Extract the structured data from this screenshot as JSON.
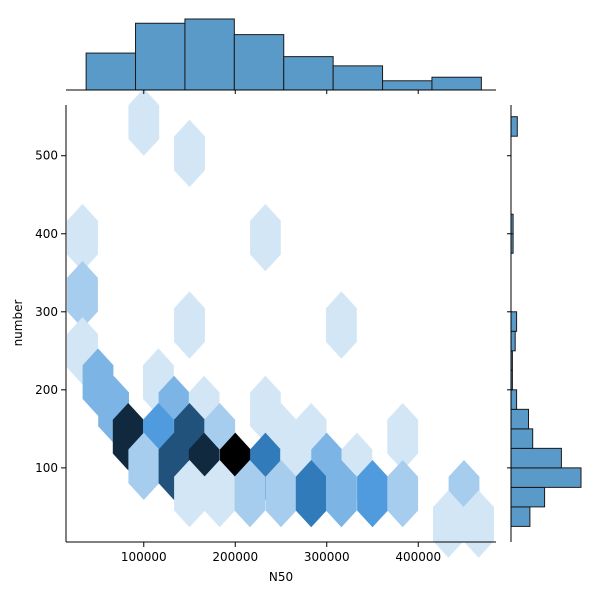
{
  "chart_data": {
    "type": "hexbin-joint",
    "xlabel": "N50",
    "ylabel": "number",
    "xlim": [
      15000,
      485000
    ],
    "ylim": [
      5,
      565
    ],
    "x_ticks": [
      100000,
      200000,
      300000,
      400000
    ],
    "x_tick_labels": [
      "100000",
      "200000",
      "300000",
      "400000"
    ],
    "y_ticks": [
      100,
      200,
      300,
      400,
      500
    ],
    "y_tick_labels": [
      "100",
      "200",
      "300",
      "400",
      "500"
    ],
    "hex_spacing_x": 33000,
    "hex_spacing_y": 85,
    "max_count": 8,
    "hexbins": [
      {
        "x": 100000,
        "y": 543,
        "count": 1
      },
      {
        "x": 150000,
        "y": 503,
        "count": 1
      },
      {
        "x": 33000,
        "y": 395,
        "count": 1
      },
      {
        "x": 233000,
        "y": 395,
        "count": 1
      },
      {
        "x": 33000,
        "y": 322,
        "count": 2
      },
      {
        "x": 150000,
        "y": 283,
        "count": 1
      },
      {
        "x": 316000,
        "y": 283,
        "count": 1
      },
      {
        "x": 33000,
        "y": 250,
        "count": 1
      },
      {
        "x": 50000,
        "y": 210,
        "count": 3
      },
      {
        "x": 116000,
        "y": 210,
        "count": 1
      },
      {
        "x": 67000,
        "y": 175,
        "count": 3
      },
      {
        "x": 133000,
        "y": 175,
        "count": 3
      },
      {
        "x": 166000,
        "y": 175,
        "count": 1
      },
      {
        "x": 233000,
        "y": 175,
        "count": 1
      },
      {
        "x": 83000,
        "y": 140,
        "count": 7
      },
      {
        "x": 116000,
        "y": 140,
        "count": 4
      },
      {
        "x": 150000,
        "y": 140,
        "count": 6
      },
      {
        "x": 183000,
        "y": 140,
        "count": 2
      },
      {
        "x": 250000,
        "y": 140,
        "count": 1
      },
      {
        "x": 283000,
        "y": 140,
        "count": 1
      },
      {
        "x": 383000,
        "y": 140,
        "count": 1
      },
      {
        "x": 100000,
        "y": 102,
        "count": 2
      },
      {
        "x": 133000,
        "y": 102,
        "count": 6
      },
      {
        "x": 166000,
        "y": 102,
        "count": 7
      },
      {
        "x": 200000,
        "y": 102,
        "count": 8
      },
      {
        "x": 233000,
        "y": 102,
        "count": 5
      },
      {
        "x": 266000,
        "y": 102,
        "count": 1
      },
      {
        "x": 300000,
        "y": 102,
        "count": 3
      },
      {
        "x": 333000,
        "y": 102,
        "count": 1
      },
      {
        "x": 150000,
        "y": 67,
        "count": 1
      },
      {
        "x": 183000,
        "y": 67,
        "count": 1
      },
      {
        "x": 216000,
        "y": 67,
        "count": 2
      },
      {
        "x": 250000,
        "y": 67,
        "count": 2
      },
      {
        "x": 283000,
        "y": 67,
        "count": 5
      },
      {
        "x": 316000,
        "y": 67,
        "count": 3
      },
      {
        "x": 350000,
        "y": 67,
        "count": 4
      },
      {
        "x": 383000,
        "y": 67,
        "count": 2
      },
      {
        "x": 450000,
        "y": 67,
        "count": 2
      },
      {
        "x": 433000,
        "y": 28,
        "count": 1
      },
      {
        "x": 466000,
        "y": 28,
        "count": 1
      }
    ],
    "x_histogram": {
      "bin_edges": [
        37000,
        91000,
        145000,
        199000,
        253000,
        307000,
        361000,
        415000,
        469000
      ],
      "heights": [
        0.52,
        0.94,
        1.0,
        0.78,
        0.47,
        0.34,
        0.13,
        0.18
      ]
    },
    "y_histogram": {
      "bin_edges": [
        25,
        50,
        75,
        100,
        125,
        150,
        175,
        200,
        225,
        250,
        275,
        300,
        325,
        350,
        375,
        400,
        425,
        450,
        475,
        500,
        525,
        550
      ],
      "widths": [
        0.27,
        0.48,
        1.0,
        0.72,
        0.31,
        0.25,
        0.08,
        0.02,
        0.02,
        0.06,
        0.08,
        0,
        0,
        0,
        0.03,
        0.03,
        0,
        0,
        0,
        0,
        0.09
      ]
    },
    "colors": {
      "hex_light": "#d2e6f6",
      "hex_mid": "#3a8fd9",
      "hex_dark": "#000000",
      "hist_fill": "#5a9ac9",
      "hist_edge": "#1a1a1a",
      "axis": "#000000"
    }
  }
}
